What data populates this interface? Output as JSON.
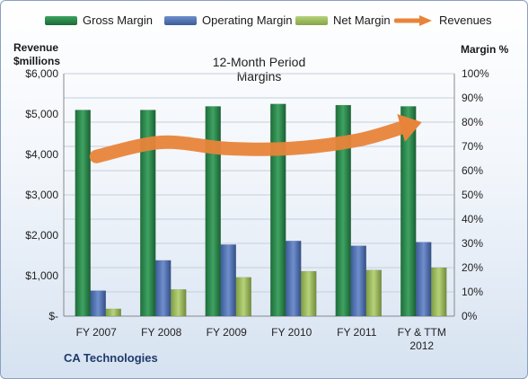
{
  "chart_data": {
    "type": "bar",
    "title": "12-Month Period Margins",
    "company": "CA Technologies",
    "categories": [
      "FY 2007",
      "FY 2008",
      "FY 2009",
      "FY 2010",
      "FY 2011",
      "FY & TTM 2012"
    ],
    "y_left": {
      "label_line1": "Revenue",
      "label_line2": "$millions",
      "ticks": [
        "$-",
        "$1,000",
        "$2,000",
        "$3,000",
        "$4,000",
        "$5,000",
        "$6,000"
      ],
      "ylim": [
        0,
        6000
      ]
    },
    "y_right": {
      "label": "Margin %",
      "ticks": [
        "0%",
        "10%",
        "20%",
        "30%",
        "40%",
        "50%",
        "60%",
        "70%",
        "80%",
        "90%",
        "100%"
      ],
      "ylim": [
        0,
        100
      ]
    },
    "series": [
      {
        "name": "Gross Margin",
        "axis": "right",
        "type": "bar",
        "color": "#1f7a3e",
        "values": [
          85,
          85,
          86.5,
          87.5,
          87,
          86.5
        ]
      },
      {
        "name": "Operating Margin",
        "axis": "right",
        "type": "bar",
        "color": "#4a6fb0",
        "values": [
          10.5,
          23,
          29.5,
          31,
          29,
          30.5
        ]
      },
      {
        "name": "Net Margin",
        "axis": "right",
        "type": "bar",
        "color": "#9bbb59",
        "values": [
          3,
          11,
          16,
          18.5,
          19,
          20
        ]
      },
      {
        "name": "Revenues",
        "axis": "left",
        "type": "line-arrow",
        "color": "#e8843a",
        "values": [
          3950,
          4300,
          4150,
          4150,
          4350,
          4800
        ]
      }
    ],
    "grid": true,
    "legend": "top"
  }
}
